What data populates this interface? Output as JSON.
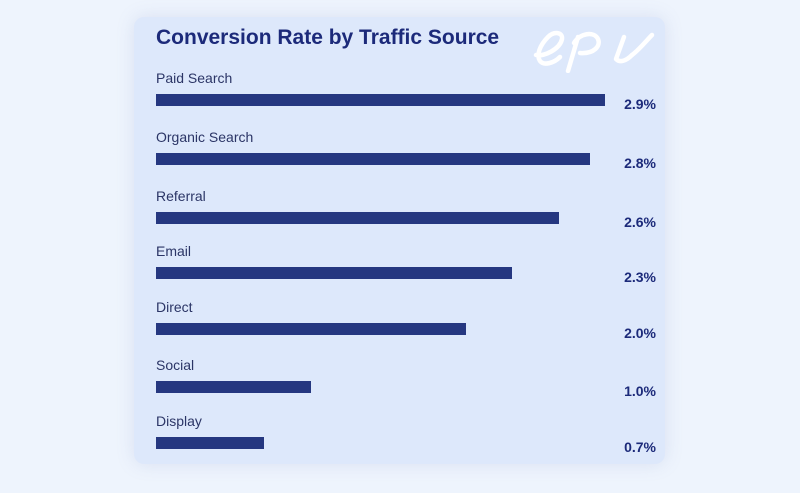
{
  "colors": {
    "page_background": "#eef4fd",
    "card_background": "#dde8fb",
    "bar": "#253780",
    "title": "#1c2a7a",
    "logo": "#ffffff"
  },
  "logo": {
    "icon": "epi-logo",
    "text": "epi"
  },
  "chart_data": {
    "type": "bar",
    "orientation": "horizontal",
    "title": "Conversion Rate by Traffic Source",
    "categories": [
      "Paid Search",
      "Organic Search",
      "Referral",
      "Email",
      "Direct",
      "Social",
      "Display"
    ],
    "values": [
      2.9,
      2.8,
      2.6,
      2.3,
      2.0,
      1.0,
      0.7
    ],
    "value_labels": [
      "2.9%",
      "2.8%",
      "2.6%",
      "2.3%",
      "2.0%",
      "1.0%",
      "0.7%"
    ],
    "xlim": [
      0,
      2.9
    ],
    "grid": false,
    "legend": "none"
  }
}
